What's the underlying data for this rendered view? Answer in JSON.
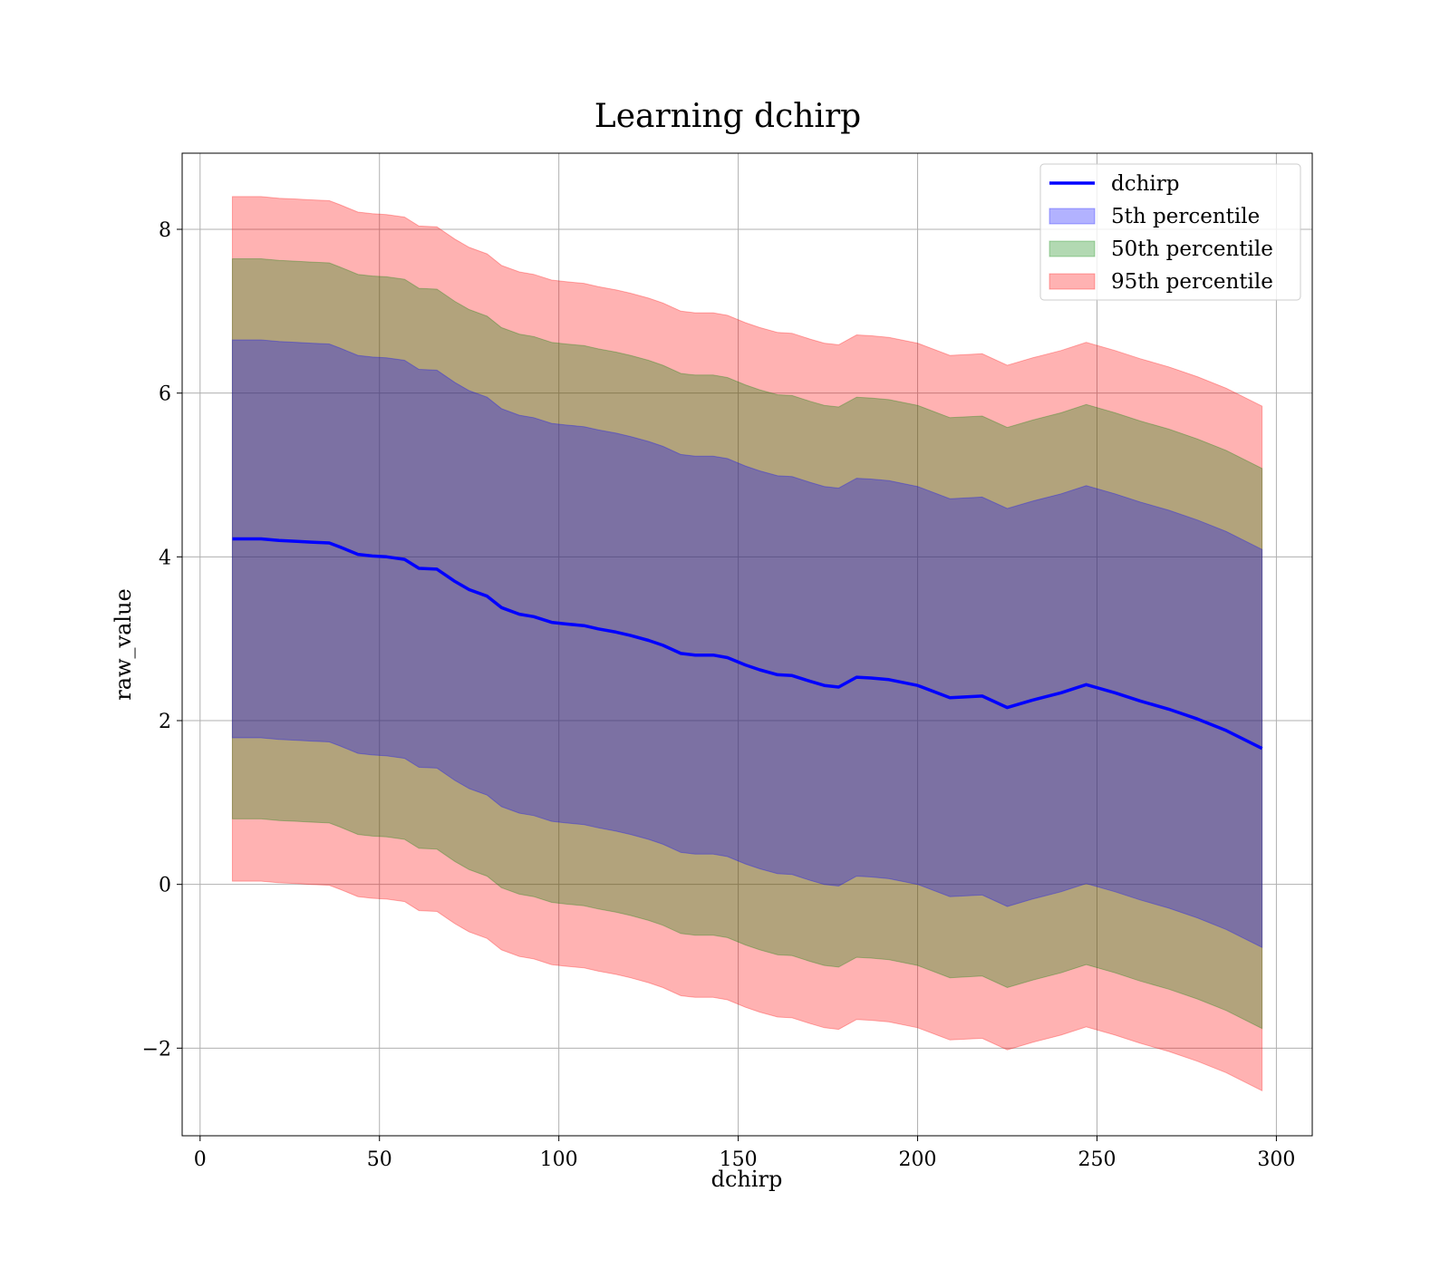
{
  "chart_data": {
    "type": "area",
    "title": "Learning dchirp",
    "xlabel": "dchirp",
    "ylabel": "raw_value",
    "xlim": [
      -5,
      310
    ],
    "ylim": [
      -3.07,
      8.93
    ],
    "x_ticks": [
      0,
      50,
      100,
      150,
      200,
      250,
      300
    ],
    "y_ticks": [
      -2,
      0,
      2,
      4,
      6,
      8
    ],
    "grid": true,
    "legend_position": "top-right",
    "x": [
      9,
      17,
      22,
      27,
      31,
      36,
      39,
      44,
      48,
      52,
      57,
      61,
      66,
      71,
      75,
      80,
      84,
      89,
      93,
      98,
      102,
      107,
      111,
      116,
      120,
      125,
      129,
      134,
      138,
      143,
      147,
      152,
      156,
      161,
      165,
      170,
      174,
      178,
      183,
      187,
      192,
      200,
      209,
      218,
      225,
      232,
      240,
      247,
      255,
      262,
      270,
      278,
      286,
      296
    ],
    "series": [
      {
        "name": "dchirp",
        "kind": "line",
        "color": "#0000ff",
        "values": [
          4.22,
          4.22,
          4.2,
          4.19,
          4.18,
          4.17,
          4.12,
          4.03,
          4.01,
          4.0,
          3.97,
          3.86,
          3.85,
          3.7,
          3.6,
          3.52,
          3.38,
          3.3,
          3.27,
          3.2,
          3.18,
          3.16,
          3.12,
          3.08,
          3.04,
          2.98,
          2.92,
          2.82,
          2.8,
          2.8,
          2.77,
          2.68,
          2.62,
          2.56,
          2.55,
          2.48,
          2.43,
          2.41,
          2.53,
          2.52,
          2.5,
          2.43,
          2.28,
          2.3,
          2.16,
          2.25,
          2.34,
          2.44,
          2.34,
          2.24,
          2.14,
          2.02,
          1.88,
          1.66
        ]
      },
      {
        "name": "5th percentile",
        "kind": "band",
        "color": "#0000ff",
        "offset": 2.43
      },
      {
        "name": "50th percentile",
        "kind": "band",
        "color": "#008000",
        "offset": 3.42
      },
      {
        "name": "95th percentile",
        "kind": "band",
        "color": "#ff0000",
        "offset": 4.18
      }
    ]
  }
}
